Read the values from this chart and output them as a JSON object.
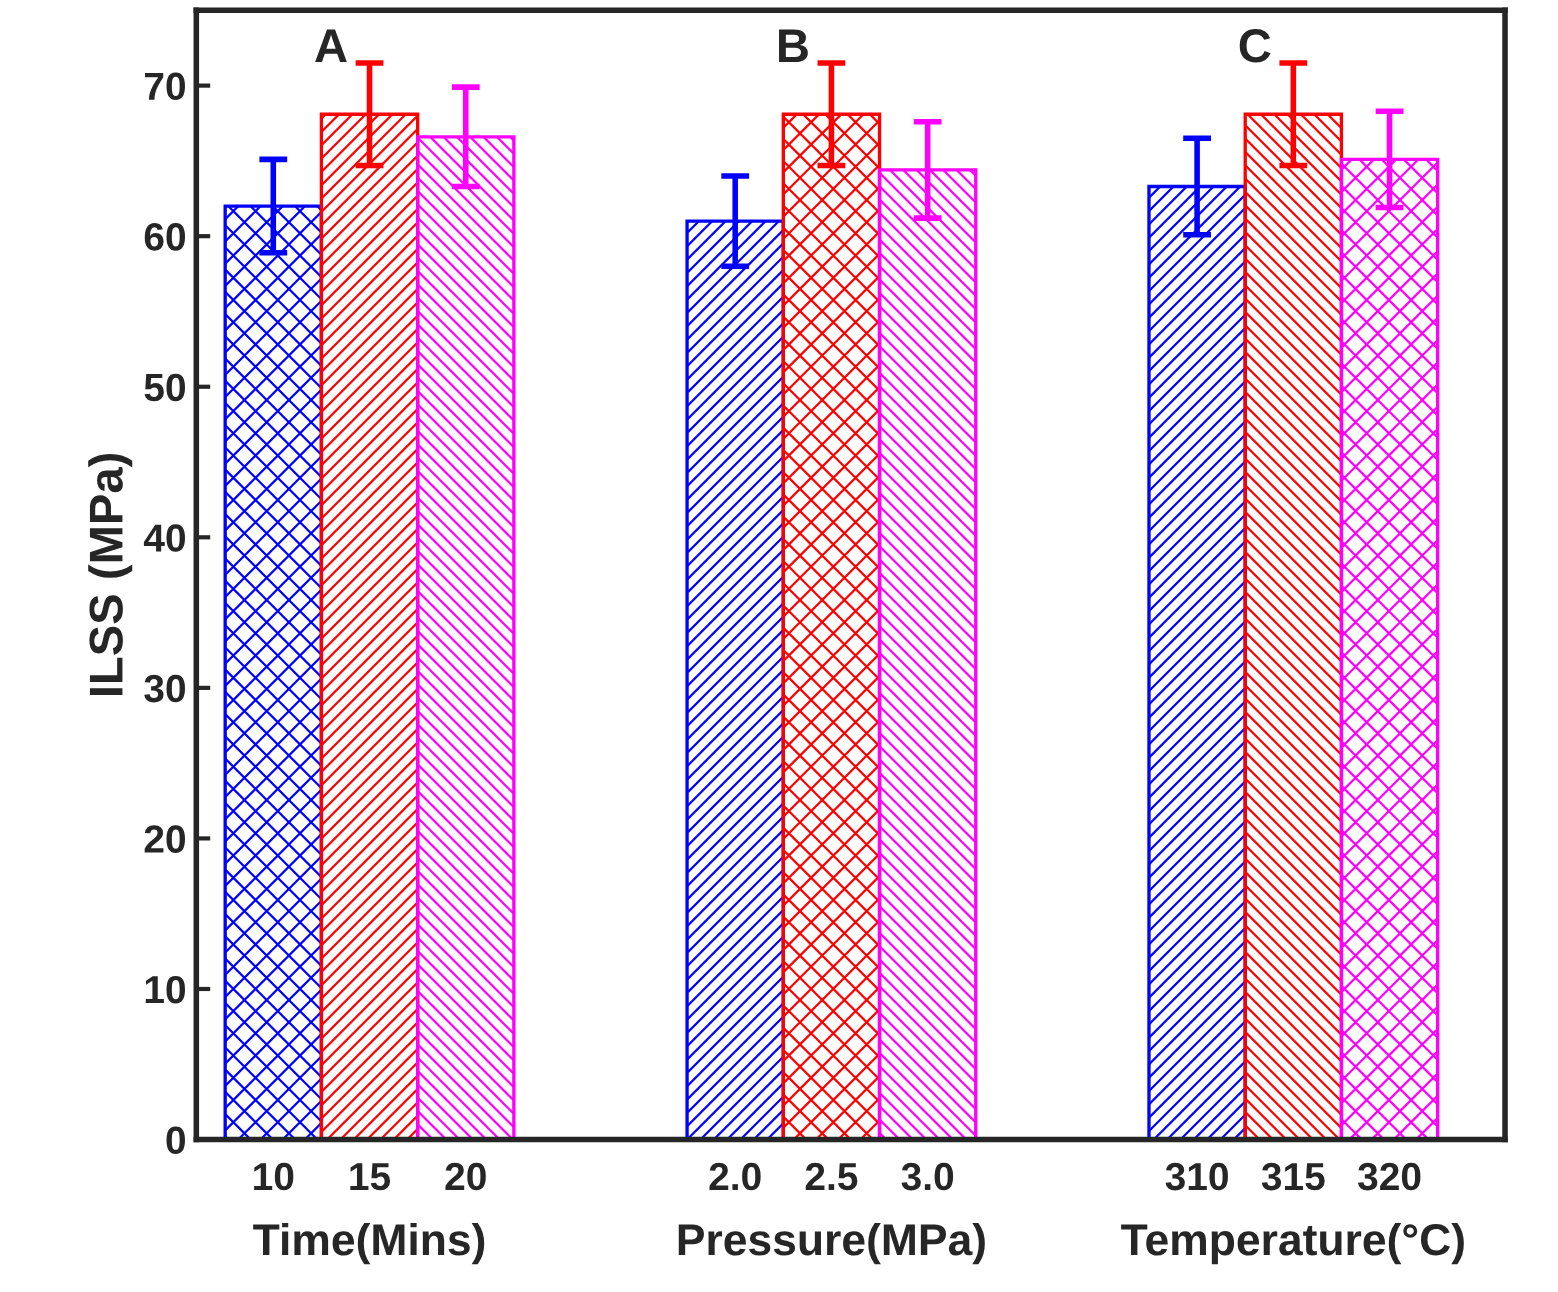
{
  "chart_data": {
    "type": "bar",
    "ylabel": "ILSS (MPa)",
    "categories": [
      "10",
      "15",
      "20",
      "2.0",
      "2.5",
      "3.0",
      "310",
      "315",
      "320"
    ],
    "values": [
      62.0,
      68.1,
      66.6,
      61.0,
      68.1,
      64.4,
      63.3,
      68.1,
      65.1
    ],
    "errors": [
      3.1,
      3.4,
      3.3,
      3.0,
      3.4,
      3.2,
      3.2,
      3.4,
      3.2
    ],
    "colors": [
      "#0000ff",
      "#ff0000",
      "#ff00ff",
      "#0000ff",
      "#ff0000",
      "#ff00ff",
      "#0000ff",
      "#ff0000",
      "#ff00ff"
    ],
    "ylim": [
      0,
      75
    ],
    "yticks": [
      0,
      10,
      20,
      30,
      40,
      50,
      60,
      70
    ],
    "grid": false,
    "annotations": [
      "A",
      "B",
      "C",
      "Time(Mins)",
      "Pressure(MPa)",
      "Temperature(°C)"
    ]
  }
}
